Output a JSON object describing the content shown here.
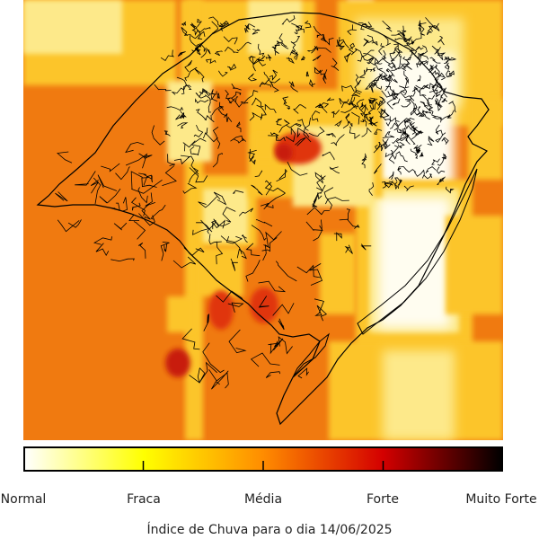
{
  "map": {
    "title": "Índice de Chuva para o dia 14/06/2025",
    "legend": {
      "labels": [
        "Normal",
        "Fraca",
        "Média",
        "Forte",
        "Muito Forte"
      ],
      "colors": [
        "#ffffff",
        "#ffff00",
        "#ff8c00",
        "#d40000",
        "#000000"
      ]
    },
    "palette": {
      "base": "#f07a10",
      "yellow": "#fcc52a",
      "lightyellow": "#fde98a",
      "white": "#fffdf0",
      "red": "#e03510",
      "darkred": "#c81e10",
      "boundary": "#000000"
    }
  }
}
